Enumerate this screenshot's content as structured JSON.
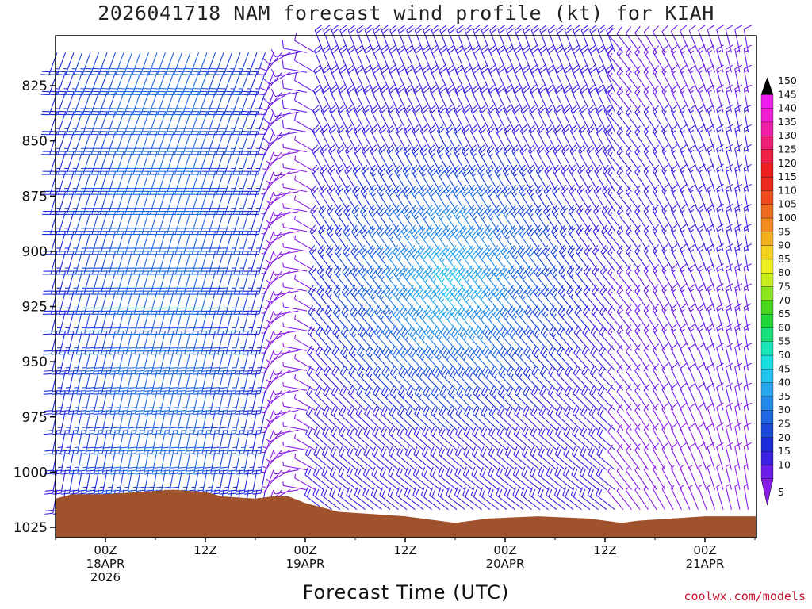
{
  "header": {
    "title": "2026041718 NAM forecast wind profile (kt) for KIAH",
    "credit": "coolwx.com/models"
  },
  "colors": {
    "terrain": "#a0522d",
    "axis": "#000000"
  },
  "chart_data": {
    "type": "wind_barb_profile",
    "title": "2026041718 NAM forecast wind profile (kt) for KIAH",
    "xlabel": "Forecast Time (UTC)",
    "ylabel": "",
    "y_axis": {
      "label": "",
      "reversed": true,
      "range": [
        1030,
        805
      ],
      "ticks": [
        825,
        850,
        875,
        900,
        925,
        950,
        975,
        1000,
        1025
      ]
    },
    "x_axis": {
      "range_hours": [
        -6,
        78
      ],
      "ticks": [
        {
          "hour": 0,
          "lines": [
            "00Z",
            "18APR",
            "2026"
          ]
        },
        {
          "hour": 12,
          "lines": [
            "12Z"
          ]
        },
        {
          "hour": 24,
          "lines": [
            "00Z",
            "19APR"
          ]
        },
        {
          "hour": 36,
          "lines": [
            "12Z"
          ]
        },
        {
          "hour": 48,
          "lines": [
            "00Z",
            "20APR"
          ]
        },
        {
          "hour": 60,
          "lines": [
            "12Z"
          ]
        },
        {
          "hour": 72,
          "lines": [
            "00Z",
            "21APR"
          ]
        }
      ]
    },
    "colorbar": {
      "levels": [
        5,
        10,
        15,
        20,
        25,
        30,
        35,
        40,
        45,
        50,
        55,
        60,
        65,
        70,
        75,
        80,
        85,
        90,
        95,
        100,
        105,
        110,
        115,
        120,
        125,
        130,
        135,
        140,
        145,
        150
      ],
      "colors": [
        "#8a1ee8",
        "#6a1ee8",
        "#3a22e0",
        "#1c2cd8",
        "#1c4ad8",
        "#1f67e0",
        "#2389e8",
        "#27a6ee",
        "#20c4ee",
        "#19e0e0",
        "#19e6b8",
        "#19e07a",
        "#22d63a",
        "#4ad61e",
        "#8ae61e",
        "#c8ee1e",
        "#eeee1e",
        "#f2d21e",
        "#f2b01e",
        "#f28c1e",
        "#ee6a1e",
        "#ee4a1e",
        "#ee2a1e",
        "#ee1e1e",
        "#ee1e46",
        "#ee1e76",
        "#ee1ea6",
        "#ee1ed0",
        "#ee1eee",
        "#000000"
      ]
    },
    "terrain_surface_hpa": [
      {
        "hour": -6,
        "p": 1012
      },
      {
        "hour": -4,
        "p": 1010
      },
      {
        "hour": 0,
        "p": 1010
      },
      {
        "hour": 4,
        "p": 1009
      },
      {
        "hour": 8,
        "p": 1008
      },
      {
        "hour": 12,
        "p": 1009
      },
      {
        "hour": 14,
        "p": 1011
      },
      {
        "hour": 18,
        "p": 1012
      },
      {
        "hour": 20,
        "p": 1011
      },
      {
        "hour": 22,
        "p": 1011
      },
      {
        "hour": 24,
        "p": 1014
      },
      {
        "hour": 26,
        "p": 1016
      },
      {
        "hour": 28,
        "p": 1018
      },
      {
        "hour": 32,
        "p": 1019
      },
      {
        "hour": 36,
        "p": 1020
      },
      {
        "hour": 40,
        "p": 1022
      },
      {
        "hour": 42,
        "p": 1023
      },
      {
        "hour": 46,
        "p": 1021
      },
      {
        "hour": 52,
        "p": 1020
      },
      {
        "hour": 58,
        "p": 1021
      },
      {
        "hour": 60,
        "p": 1022
      },
      {
        "hour": 62,
        "p": 1023
      },
      {
        "hour": 64,
        "p": 1022
      },
      {
        "hour": 68,
        "p": 1021
      },
      {
        "hour": 72,
        "p": 1020
      },
      {
        "hour": 78,
        "p": 1020
      }
    ],
    "wind_fields": {
      "note_levels_hpa": [
        810,
        1020
      ],
      "features": [
        {
          "hour_range": [
            -6,
            20
          ],
          "dir_deg": 195,
          "speed_kt": [
            20,
            35
          ]
        },
        {
          "hour_range": [
            20,
            26
          ],
          "dir_deg": 200,
          "speed_kt": [
            5,
            10
          ]
        },
        {
          "hour_range": [
            26,
            62
          ],
          "dir_deg": 330,
          "speed_kt": [
            20,
            50
          ]
        },
        {
          "hour_range": [
            62,
            78
          ],
          "dir_deg": 330,
          "speed_kt": [
            5,
            20
          ]
        }
      ]
    }
  }
}
